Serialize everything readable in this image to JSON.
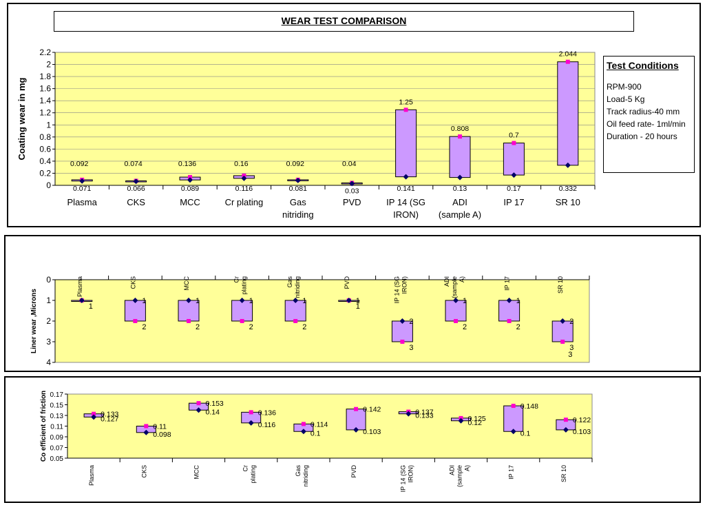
{
  "page_title": "WEAR TEST COMPARISON",
  "test_conditions": {
    "title": "Test Conditions",
    "lines": [
      "RPM-900",
      "Load-5 Kg",
      "Track radius-40 mm",
      "Oil feed rate- 1ml/min",
      "Duration - 20 hours"
    ]
  },
  "colors": {
    "plot_bg": "#ffff99",
    "box_fill": "#cc99ff",
    "high_marker": "#ff00cc",
    "low_marker": "#000066"
  },
  "chart_data": [
    {
      "type": "box",
      "ylabel": "Coating wear in mg",
      "ylim": [
        0,
        2.2
      ],
      "yticks": [
        "0",
        "0.2",
        "0.4",
        "0.6",
        "0.8",
        "1",
        "1.2",
        "1.4",
        "1.6",
        "1.8",
        "2",
        "2.2"
      ],
      "categories": [
        [
          "Plasma"
        ],
        [
          "CKS"
        ],
        [
          "MCC"
        ],
        [
          "Cr plating"
        ],
        [
          "Gas",
          "nitriding"
        ],
        [
          "PVD"
        ],
        [
          "IP 14 (SG",
          "IRON)"
        ],
        [
          "ADI",
          "(sample A)"
        ],
        [
          "IP 17"
        ],
        [
          "SR 10"
        ]
      ],
      "high_labels": [
        "0.092",
        "0.074",
        "0.136",
        "0.16",
        "0.092",
        "0.04",
        "1.25",
        "0.808",
        "0.7",
        "2.044"
      ],
      "low_labels": [
        "0.071",
        "0.066",
        "0.089",
        "0.116",
        "0.081",
        "0.03",
        "0.141",
        "0.13",
        "0.17",
        "0.332"
      ],
      "series": [
        {
          "values": [
            0.092,
            0.074,
            0.136,
            0.16,
            0.092,
            0.04,
            1.25,
            0.808,
            0.7,
            2.044
          ]
        },
        {
          "values": [
            0.071,
            0.066,
            0.089,
            0.116,
            0.081,
            0.03,
            0.141,
            0.13,
            0.17,
            0.332
          ]
        }
      ]
    },
    {
      "type": "box",
      "ylabel": "Liner wear ,Microns",
      "ylim": [
        0,
        4
      ],
      "y_inverted": true,
      "yticks": [
        "0",
        "1",
        "2",
        "3",
        "4"
      ],
      "categories": [
        [
          "Plasma"
        ],
        [
          "CKS"
        ],
        [
          "MCC"
        ],
        [
          "Cr",
          "plating"
        ],
        [
          "Gas",
          "nitriding"
        ],
        [
          "PVD"
        ],
        [
          "IP 14 (SG",
          "IRON)"
        ],
        [
          "ADI",
          "(sample",
          "A)"
        ],
        [
          "IP 17"
        ],
        [
          "SR 10"
        ]
      ],
      "high_labels": [
        "1",
        "2",
        "2",
        "2",
        "2",
        "1",
        "3",
        "2",
        "2",
        "3"
      ],
      "low_labels": [
        "",
        "1",
        "1",
        "1",
        "1",
        "1",
        "2",
        "1",
        "1",
        "2"
      ],
      "extra_labels": [
        "",
        "",
        "",
        "",
        "",
        "",
        "",
        "",
        "",
        "3"
      ],
      "series": [
        {
          "values": [
            1,
            2,
            2,
            2,
            2,
            1,
            3,
            2,
            2,
            3
          ]
        },
        {
          "values": [
            1,
            1,
            1,
            1,
            1,
            1,
            2,
            1,
            1,
            2
          ]
        }
      ]
    },
    {
      "type": "box",
      "ylabel": "Co efficient of friction",
      "ylim": [
        0.05,
        0.17
      ],
      "yticks": [
        "0.17",
        "0.15",
        "0.13",
        "0.11",
        "0.09",
        "0.07",
        "0.05"
      ],
      "categories": [
        [
          "Plasma"
        ],
        [
          "CKS"
        ],
        [
          "MCC"
        ],
        [
          "Cr",
          "plating"
        ],
        [
          "Gas",
          "nitriding"
        ],
        [
          "PVD"
        ],
        [
          "IP 14 (SG",
          "IRON)"
        ],
        [
          "ADI",
          "(sample",
          "A)"
        ],
        [
          "IP 17"
        ],
        [
          "SR 10"
        ]
      ],
      "high_labels": [
        "0.133",
        "0.11",
        "0.153",
        "0.136",
        "0.114",
        "0.142",
        "0.137",
        "0.125",
        "0.148",
        "0.122"
      ],
      "low_labels": [
        "0.127",
        "0.098",
        "0.14",
        "0.116",
        "0.1",
        "0.103",
        "0.133",
        "0.12",
        "0.1",
        "0.103"
      ],
      "series": [
        {
          "values": [
            0.133,
            0.11,
            0.153,
            0.136,
            0.114,
            0.142,
            0.137,
            0.125,
            0.148,
            0.122
          ]
        },
        {
          "values": [
            0.127,
            0.098,
            0.14,
            0.116,
            0.1,
            0.103,
            0.133,
            0.12,
            0.1,
            0.103
          ]
        }
      ]
    }
  ]
}
